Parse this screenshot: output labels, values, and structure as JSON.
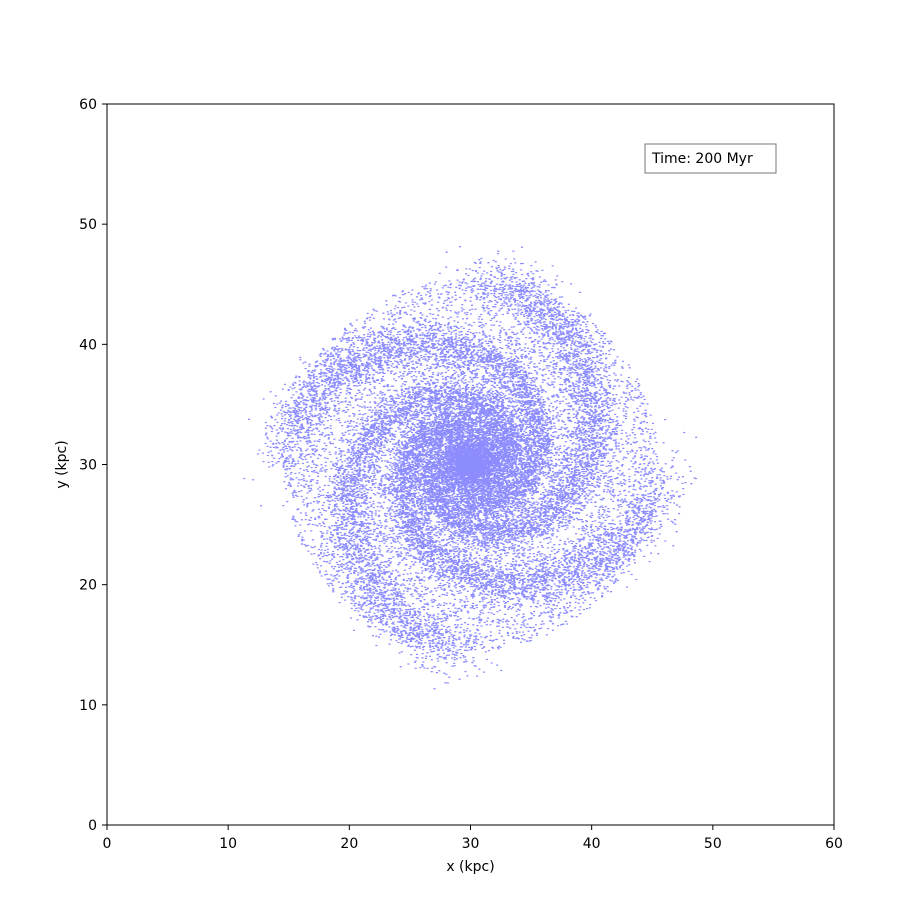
{
  "chart_data": {
    "type": "scatter",
    "title": "",
    "xlabel": "x (kpc)",
    "ylabel": "y (kpc)",
    "xlim": [
      0,
      60
    ],
    "ylim": [
      0,
      60
    ],
    "xticks": [
      0,
      10,
      20,
      30,
      40,
      50,
      60
    ],
    "yticks": [
      0,
      10,
      20,
      30,
      40,
      50,
      60
    ],
    "grid": false,
    "annotation": "Time: 200 Myr",
    "series": [
      {
        "marker_color": "#0000ff",
        "galaxy": {
          "center": [
            30,
            30
          ],
          "disk_radius": 15.5,
          "core_radius": 5.5,
          "arm_count": 4,
          "particle_count": 26000
        }
      }
    ]
  }
}
